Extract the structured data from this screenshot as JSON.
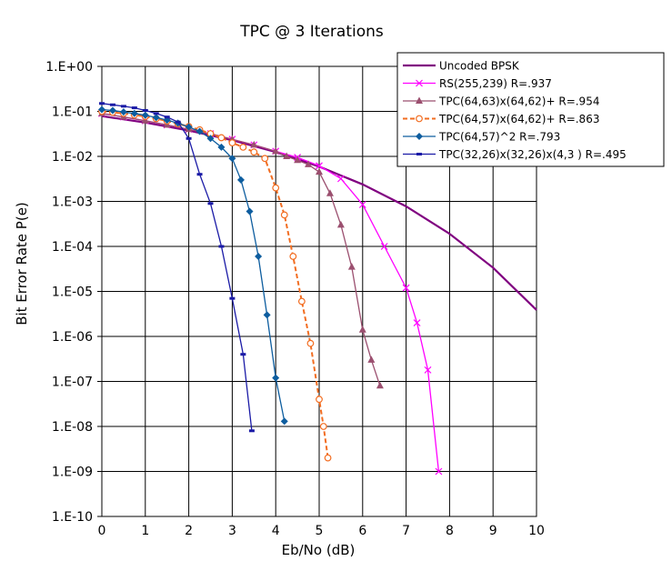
{
  "chart_data": {
    "type": "line",
    "title": "TPC @ 3 Iterations",
    "xlabel": "Eb/No (dB)",
    "ylabel": "Bit Error Rate P(e)",
    "xlim": [
      0,
      10
    ],
    "ylim": [
      1e-10,
      1
    ],
    "yscale": "log",
    "grid": true,
    "legend_position": "top-right",
    "x_ticks": [
      "0",
      "1",
      "2",
      "3",
      "4",
      "5",
      "6",
      "7",
      "8",
      "9",
      "10"
    ],
    "y_ticks": [
      "1.E+00",
      "1.E-01",
      "1.E-02",
      "1.E-03",
      "1.E-04",
      "1.E-05",
      "1.E-06",
      "1.E-07",
      "1.E-08",
      "1.E-09",
      "1.E-10"
    ],
    "series": [
      {
        "name": "Uncoded BPSK",
        "color": "#800080",
        "marker": "none",
        "dash": "solid",
        "x": [
          0,
          1,
          2,
          3,
          4,
          5,
          6,
          7,
          8,
          9,
          10
        ],
        "y": [
          0.0786,
          0.0563,
          0.0375,
          0.0229,
          0.0125,
          0.00595,
          0.00239,
          0.000773,
          0.000191,
          3.36e-05,
          3.87e-06
        ]
      },
      {
        "name": "RS(255,239)  R=.937",
        "color": "#ff00ff",
        "marker": "x",
        "dash": "solid",
        "x": [
          0,
          0.5,
          1,
          1.5,
          2,
          2.5,
          3,
          3.5,
          4,
          4.5,
          5,
          5.5,
          6,
          6.5,
          7,
          7.25,
          7.5,
          7.75
        ],
        "y": [
          0.09,
          0.075,
          0.062,
          0.05,
          0.04,
          0.032,
          0.024,
          0.018,
          0.013,
          0.0095,
          0.0062,
          0.0032,
          0.00085,
          0.0001,
          1.2e-05,
          2e-06,
          1.8e-07,
          1e-09
        ]
      },
      {
        "name": "TPC(64,63)x(64,62)+  R=.954",
        "color": "#9b4f6f",
        "marker": "triangle",
        "dash": "solid",
        "x": [
          0,
          0.5,
          1,
          1.5,
          2,
          2.5,
          3,
          3.5,
          4,
          4.25,
          4.5,
          4.75,
          5,
          5.25,
          5.5,
          5.75,
          6,
          6.2,
          6.4
        ],
        "y": [
          0.09,
          0.075,
          0.062,
          0.05,
          0.04,
          0.032,
          0.024,
          0.018,
          0.013,
          0.01,
          0.0082,
          0.0066,
          0.0045,
          0.0015,
          0.0003,
          3.5e-05,
          1.4e-06,
          3e-07,
          8e-08
        ]
      },
      {
        "name": "TPC(64,57)x(64,62)+ R=.863",
        "color": "#f26d21",
        "marker": "circle",
        "dash": "dashed",
        "x": [
          0,
          0.25,
          0.5,
          0.75,
          1,
          1.25,
          1.5,
          1.75,
          2,
          2.25,
          2.5,
          2.75,
          3,
          3.25,
          3.5,
          3.75,
          4,
          4.2,
          4.4,
          4.6,
          4.8,
          5,
          5.1,
          5.2
        ],
        "y": [
          0.1,
          0.095,
          0.09,
          0.083,
          0.077,
          0.069,
          0.061,
          0.053,
          0.046,
          0.039,
          0.032,
          0.026,
          0.02,
          0.016,
          0.0125,
          0.009,
          0.002,
          0.0005,
          6e-05,
          6e-06,
          7e-07,
          4e-08,
          1e-08,
          2e-09
        ]
      },
      {
        "name": "TPC(64,57)^2  R=.793",
        "color": "#0d5d9f",
        "marker": "diamond",
        "dash": "solid",
        "x": [
          0,
          0.25,
          0.5,
          0.75,
          1,
          1.25,
          1.5,
          1.75,
          2,
          2.25,
          2.5,
          2.75,
          3,
          3.2,
          3.4,
          3.6,
          3.8,
          4,
          4.2
        ],
        "y": [
          0.11,
          0.105,
          0.097,
          0.09,
          0.082,
          0.073,
          0.064,
          0.055,
          0.045,
          0.036,
          0.025,
          0.016,
          0.009,
          0.003,
          0.0006,
          6e-05,
          3e-06,
          1.2e-07,
          1.3e-08
        ]
      },
      {
        "name": "TPC(32,26)x(32,26)x(4,3 )  R=.495",
        "color": "#1a1aa6",
        "marker": "dash",
        "dash": "solid",
        "x": [
          0,
          0.25,
          0.5,
          0.75,
          1,
          1.25,
          1.5,
          1.75,
          2,
          2.25,
          2.5,
          2.75,
          3,
          3.25,
          3.45
        ],
        "y": [
          0.15,
          0.14,
          0.13,
          0.12,
          0.105,
          0.09,
          0.075,
          0.058,
          0.025,
          0.004,
          0.0009,
          0.0001,
          7e-06,
          4e-07,
          8e-09
        ]
      }
    ]
  }
}
